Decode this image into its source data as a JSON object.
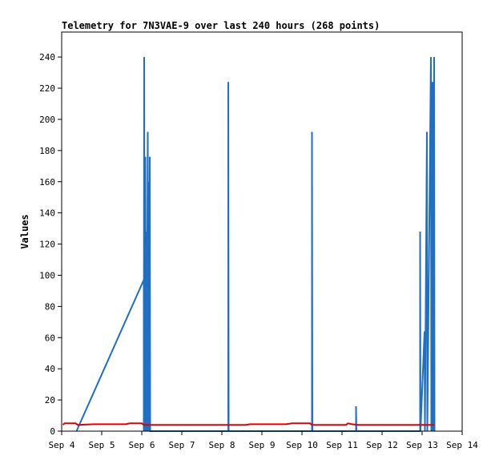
{
  "chart_data": {
    "type": "line",
    "title": "Telemetry for 7N3VAE-9 over last 240 hours (268 points)",
    "xlabel": "",
    "ylabel": "Values",
    "x_ticks": [
      "Sep 4",
      "Sep 5",
      "Sep 6",
      "Sep 7",
      "Sep 8",
      "Sep 9",
      "Sep 10",
      "Sep 11",
      "Sep 12",
      "Sep 13",
      "Sep 14"
    ],
    "x_range_days": [
      4,
      14
    ],
    "y_ticks": [
      0,
      20,
      40,
      60,
      80,
      100,
      120,
      140,
      160,
      180,
      200,
      220,
      240
    ],
    "ylim": [
      0,
      256
    ],
    "grid": false,
    "legend": "none",
    "series": [
      {
        "color": "#1f6fc4",
        "points": [
          [
            4.37,
            0
          ],
          [
            6.05,
            97
          ],
          [
            6.05,
            0
          ],
          [
            6.06,
            240
          ],
          [
            6.07,
            0
          ],
          [
            6.09,
            176
          ],
          [
            6.1,
            0
          ],
          [
            6.11,
            128
          ],
          [
            6.12,
            0
          ],
          [
            6.15,
            192
          ],
          [
            6.16,
            0
          ],
          [
            6.17,
            160
          ],
          [
            6.18,
            0
          ],
          [
            6.2,
            176
          ],
          [
            6.21,
            0
          ],
          [
            8.16,
            0
          ],
          [
            8.16,
            224
          ],
          [
            8.17,
            0
          ],
          [
            10.25,
            0
          ],
          [
            10.25,
            192
          ],
          [
            10.26,
            0
          ],
          [
            11.35,
            0
          ],
          [
            11.35,
            16
          ],
          [
            11.36,
            0
          ],
          [
            12.95,
            0
          ],
          [
            12.95,
            128
          ],
          [
            12.96,
            0
          ],
          [
            13.06,
            64
          ],
          [
            13.07,
            0
          ],
          [
            13.12,
            192
          ],
          [
            13.13,
            0
          ],
          [
            13.22,
            240
          ],
          [
            13.23,
            0
          ],
          [
            13.26,
            224
          ],
          [
            13.27,
            0
          ],
          [
            13.3,
            240
          ],
          [
            13.31,
            0
          ]
        ]
      },
      {
        "color": "#e00000",
        "points": [
          [
            4.03,
            4
          ],
          [
            4.07,
            5
          ],
          [
            4.35,
            5
          ],
          [
            4.4,
            4
          ],
          [
            4.8,
            4.4
          ],
          [
            5.6,
            4.4
          ],
          [
            5.7,
            5
          ],
          [
            6.0,
            5
          ],
          [
            6.05,
            4
          ],
          [
            8.6,
            4
          ],
          [
            8.7,
            4.4
          ],
          [
            9.6,
            4.4
          ],
          [
            9.75,
            5
          ],
          [
            10.2,
            5
          ],
          [
            10.25,
            4
          ],
          [
            11.1,
            4
          ],
          [
            11.15,
            5
          ],
          [
            11.25,
            4.4
          ],
          [
            11.4,
            4
          ],
          [
            13.3,
            4
          ]
        ]
      },
      {
        "color": "#000000",
        "points": [
          [
            4.0,
            0
          ],
          [
            14.0,
            0
          ]
        ]
      }
    ]
  }
}
